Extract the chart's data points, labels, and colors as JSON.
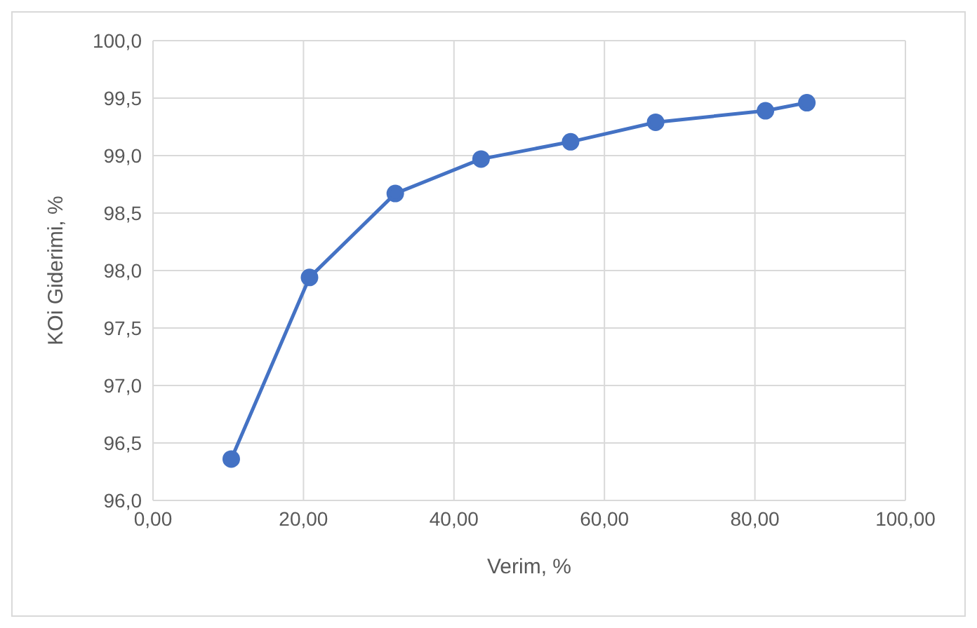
{
  "chart_data": {
    "type": "line",
    "xlabel": "Verim, %",
    "ylabel": "KOi Giderimi, %",
    "x": [
      10.4,
      20.8,
      32.2,
      43.6,
      55.5,
      66.8,
      81.4,
      86.9
    ],
    "series": [
      {
        "color": "#4472c4",
        "values": [
          96.36,
          97.94,
          98.67,
          98.97,
          99.12,
          99.29,
          99.39,
          99.46
        ]
      }
    ],
    "xlim": [
      0,
      100
    ],
    "xticks": [
      {
        "value": 0,
        "label": "0,00"
      },
      {
        "value": 20,
        "label": "20,00"
      },
      {
        "value": 40,
        "label": "40,00"
      },
      {
        "value": 60,
        "label": "60,00"
      },
      {
        "value": 80,
        "label": "80,00"
      },
      {
        "value": 100,
        "label": "100,00"
      }
    ],
    "ylim": [
      96,
      100
    ],
    "yticks": [
      {
        "value": 96,
        "label": "96,0"
      },
      {
        "value": 96.5,
        "label": "96,5"
      },
      {
        "value": 97,
        "label": "97,0"
      },
      {
        "value": 97.5,
        "label": "97,5"
      },
      {
        "value": 98,
        "label": "98,0"
      },
      {
        "value": 98.5,
        "label": "98,5"
      },
      {
        "value": 99,
        "label": "99,0"
      },
      {
        "value": 99.5,
        "label": "99,5"
      },
      {
        "value": 100,
        "label": "100,0"
      }
    ],
    "grid": true,
    "marker": "circle",
    "line_style": "solid",
    "legend": false
  }
}
